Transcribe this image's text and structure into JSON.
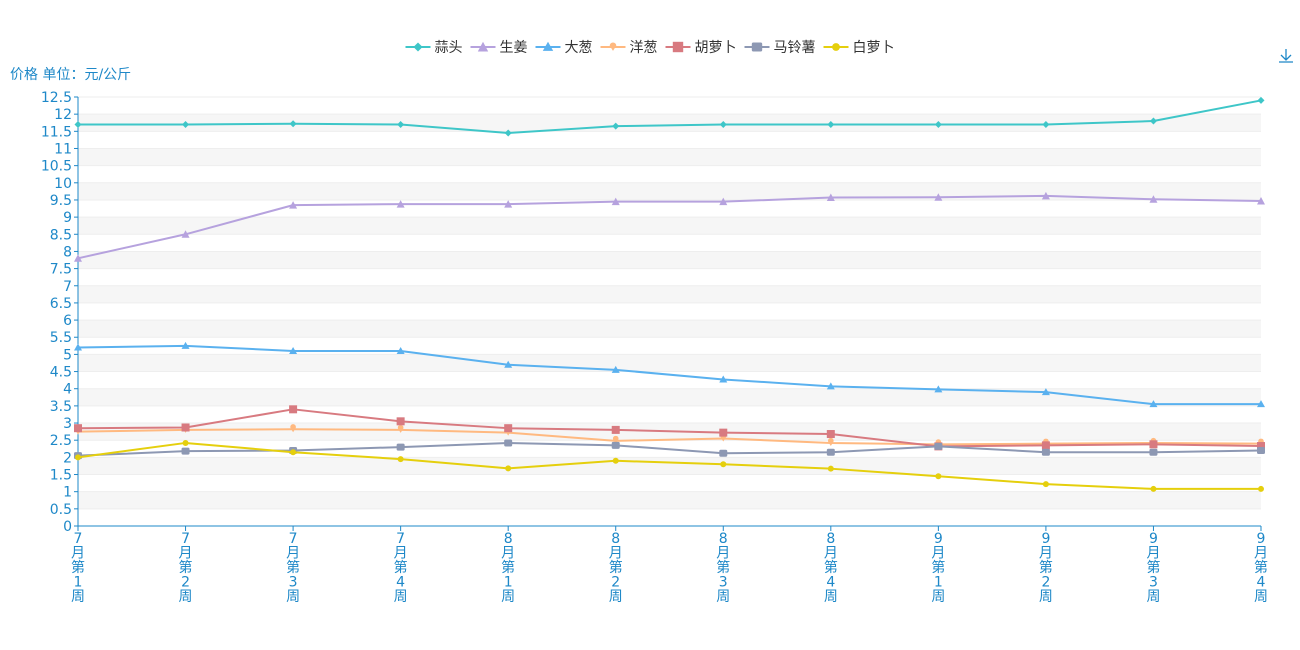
{
  "chart_data": {
    "type": "line",
    "ylabel": "价格 单位：元/公斤",
    "ylim": [
      0,
      12.5
    ],
    "ytick_step": 0.5,
    "grid": true,
    "legend": "top-center",
    "categories": [
      "7月第1周",
      "7月第2周",
      "7月第3周",
      "7月第4周",
      "8月第1周",
      "8月第2周",
      "8月第3周",
      "8月第4周",
      "9月第1周",
      "9月第2周",
      "9月第3周",
      "9月第4周"
    ],
    "series": [
      {
        "name": "蒜头",
        "color": "#3ec6c8",
        "marker": "diamond",
        "values": [
          11.7,
          11.7,
          11.72,
          11.7,
          11.45,
          11.65,
          11.7,
          11.7,
          11.7,
          11.7,
          11.8,
          12.4
        ]
      },
      {
        "name": "生姜",
        "color": "#b6a2de",
        "marker": "triangle-large",
        "values": [
          7.8,
          8.5,
          9.35,
          9.38,
          9.38,
          9.45,
          9.45,
          9.57,
          9.58,
          9.62,
          9.52,
          9.47
        ]
      },
      {
        "name": "大葱",
        "color": "#5ab1ef",
        "marker": "triangle",
        "values": [
          5.2,
          5.25,
          5.1,
          5.1,
          4.7,
          4.55,
          4.27,
          4.07,
          3.98,
          3.9,
          3.55,
          3.55
        ]
      },
      {
        "name": "洋葱",
        "color": "#ffb980",
        "marker": "pin",
        "values": [
          2.75,
          2.8,
          2.82,
          2.8,
          2.72,
          2.48,
          2.55,
          2.42,
          2.38,
          2.4,
          2.42,
          2.4
        ]
      },
      {
        "name": "胡萝卜",
        "color": "#d87a80",
        "marker": "rect",
        "values": [
          2.85,
          2.87,
          3.4,
          3.05,
          2.85,
          2.8,
          2.72,
          2.68,
          2.32,
          2.35,
          2.38,
          2.33
        ]
      },
      {
        "name": "马铃薯",
        "color": "#8d98b3",
        "marker": "roundRect",
        "values": [
          2.05,
          2.18,
          2.2,
          2.3,
          2.42,
          2.35,
          2.12,
          2.15,
          2.32,
          2.15,
          2.15,
          2.2
        ]
      },
      {
        "name": "白萝卜",
        "color": "#e5cf0d",
        "marker": "circle",
        "values": [
          2.0,
          2.42,
          2.15,
          1.95,
          1.68,
          1.9,
          1.8,
          1.67,
          1.45,
          1.22,
          1.08,
          1.08
        ]
      }
    ]
  },
  "toolbar": {
    "download_icon": "download-icon"
  }
}
